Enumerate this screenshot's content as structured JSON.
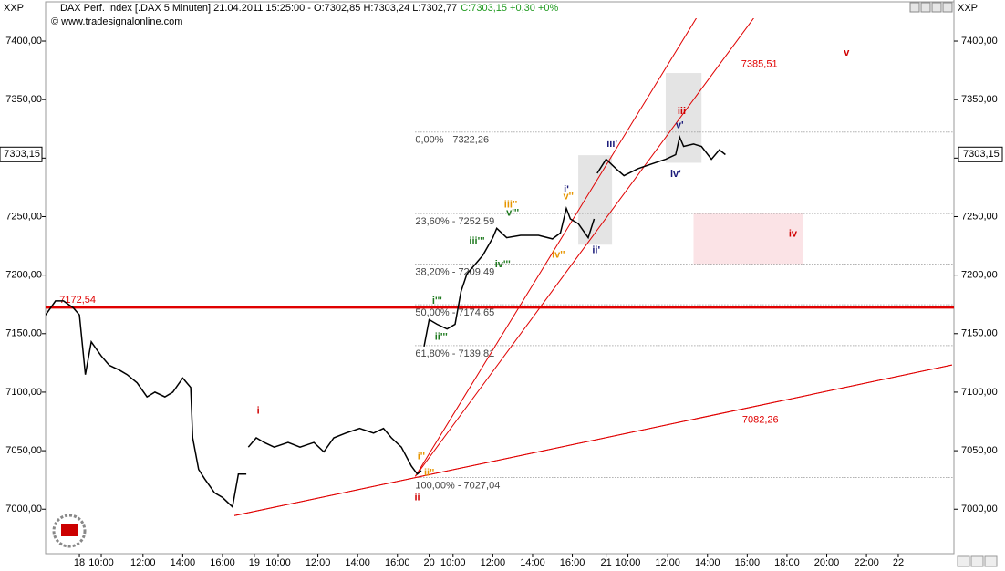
{
  "chart_data": {
    "type": "line",
    "symbol": "XXP",
    "title": "DAX Perf. Index [.DAX 5 Minuten] 21.04.2011 15:25:00 - O:7302,85 H:7303,24 L:7302,77",
    "quote": "C:7303,15 +0,30 +0%",
    "source": "© www.tradesignalonline.com",
    "color": "#000000",
    "x": [
      0,
      0.5,
      0.9,
      1.4,
      1.7,
      2.0,
      2.3,
      2.8,
      3.2,
      3.7,
      4.1,
      4.6,
      5.1,
      5.5,
      6.0,
      6.4,
      6.9,
      7.3,
      7.4,
      7.7,
      8.0,
      8.5,
      8.9,
      9.4,
      9.7,
      10.1,
      10.15,
      10.2,
      10.6,
      11.0,
      11.5,
      12.2,
      12.8,
      13.5,
      14.0,
      14.5,
      15.1,
      15.8,
      16.5,
      17.0,
      17.4,
      17.9,
      18.4,
      18.7,
      18.9,
      19.0,
      19.04,
      19.3,
      19.7,
      20.2,
      20.6,
      20.9,
      21.2,
      21.6,
      22.0,
      22.5,
      22.7,
      23.2,
      23.9,
      24.8,
      25.5,
      25.9,
      26.2,
      26.4,
      26.8,
      27.3,
      27.6,
      27.7,
      27.75,
      28.2,
      28.7,
      29.1,
      29.8,
      30.5,
      31.2,
      31.7,
      31.9,
      32.1,
      32.6,
      33.0,
      33.5,
      33.9,
      34.2
    ],
    "values": [
      7166,
      7178,
      7178,
      7172,
      7166,
      7115,
      7143,
      7131,
      7123,
      7119,
      7115,
      7108,
      7096,
      7100,
      7096,
      7100,
      7112,
      7104,
      7061,
      7034,
      7026,
      7014,
      7010,
      7002,
      7030,
      7030,
      null,
      7053,
      7061,
      7057,
      7053,
      7057,
      7053,
      7057,
      7049,
      7061,
      7065,
      7069,
      7065,
      7069,
      7061,
      7053,
      7037,
      7030,
      7033,
      null,
      7139,
      7162,
      7158,
      7154,
      7158,
      7186,
      7201,
      7209,
      7217,
      7232,
      7240,
      7232,
      7234,
      7234,
      7231,
      7236,
      7257,
      7248,
      7244,
      7232,
      7248,
      null,
      7287,
      7299,
      7291,
      7285,
      7291,
      7295,
      7299,
      7303,
      7318,
      7310,
      7312,
      7310,
      7299,
      7307,
      7303
    ],
    "xlim": [
      0,
      45.7
    ],
    "ylim": [
      6962,
      7419.5
    ],
    "xticks": [
      {
        "value": 1.7,
        "label": "18"
      },
      {
        "value": 2.8,
        "label": "10:00"
      },
      {
        "value": 4.9,
        "label": "12:00"
      },
      {
        "value": 6.9,
        "label": "14:00"
      },
      {
        "value": 8.9,
        "label": "16:00"
      },
      {
        "value": 10.5,
        "label": "19"
      },
      {
        "value": 11.7,
        "label": "10:00"
      },
      {
        "value": 13.7,
        "label": "12:00"
      },
      {
        "value": 15.7,
        "label": "14:00"
      },
      {
        "value": 17.7,
        "label": "16:00"
      },
      {
        "value": 19.3,
        "label": "20"
      },
      {
        "value": 20.5,
        "label": "10:00"
      },
      {
        "value": 22.5,
        "label": "12:00"
      },
      {
        "value": 24.5,
        "label": "14:00"
      },
      {
        "value": 26.5,
        "label": "16:00"
      },
      {
        "value": 28.2,
        "label": "21"
      },
      {
        "value": 29.3,
        "label": "10:00"
      },
      {
        "value": 31.3,
        "label": "12:00"
      },
      {
        "value": 33.3,
        "label": "14:00"
      },
      {
        "value": 35.3,
        "label": "16:00"
      },
      {
        "value": 37.3,
        "label": "18:00"
      },
      {
        "value": 39.3,
        "label": "20:00"
      },
      {
        "value": 41.3,
        "label": "22:00"
      },
      {
        "value": 42.9,
        "label": "22"
      }
    ],
    "yticks": [
      {
        "value": 7000,
        "label": "7000,00"
      },
      {
        "value": 7050,
        "label": "7050,00"
      },
      {
        "value": 7100,
        "label": "7100,00"
      },
      {
        "value": 7150,
        "label": "7150,00"
      },
      {
        "value": 7200,
        "label": "7200,00"
      },
      {
        "value": 7250,
        "label": "7250,00"
      },
      {
        "value": 7300,
        "label": "7300,00"
      },
      {
        "value": 7350,
        "label": "7350,00"
      },
      {
        "value": 7400,
        "label": "7400,00"
      }
    ],
    "last_price": {
      "value": 7303.15,
      "label": "7303,15"
    },
    "hlines": [
      {
        "value": 7172.54,
        "label": "7172,54",
        "color": "#e00000",
        "label_x": 0.7
      }
    ],
    "fib_start_x": 18.6,
    "fib": [
      {
        "value": 7322.26,
        "label": "0,00% - 7322,26"
      },
      {
        "value": 7252.59,
        "label": "23,60% - 7252,59"
      },
      {
        "value": 7209.49,
        "label": "38,20% - 7209,49"
      },
      {
        "value": 7174.65,
        "label": "50,00% - 7174,65"
      },
      {
        "value": 7139.81,
        "label": "61,80% - 7139,81"
      },
      {
        "value": 7027.04,
        "label": "100,00% - 7027,04"
      }
    ],
    "trendlines": [
      {
        "x": [
          9.5,
          45.6
        ],
        "y": [
          6994.5,
          7123.2
        ],
        "color": "#e00000"
      },
      {
        "x": [
          18.6,
          33.3
        ],
        "y": [
          7028,
          7435.1
        ],
        "color": "#e00000"
      },
      {
        "x": [
          18.6,
          36.3
        ],
        "y": [
          7028,
          7435.1
        ],
        "color": "#e00000",
        "label": "7385,51",
        "label_x": 35.0,
        "label_y": 7380
      },
      {
        "x": [
          9.5,
          45.6
        ],
        "y": [
          6994.5,
          7123.2
        ],
        "color": "#e00000",
        "label": "7082,26",
        "label_x": 35.05,
        "label_y": 7076
      }
    ],
    "boxes": [
      {
        "x": [
          26.8,
          28.5
        ],
        "y": [
          7226,
          7302.5
        ],
        "color": "#e4e4e4"
      },
      {
        "x": [
          31.2,
          33.0
        ],
        "y": [
          7296,
          7372.7
        ],
        "color": "#e4e4e4"
      },
      {
        "x": [
          32.6,
          38.1
        ],
        "y": [
          7209.49,
          7252.59
        ],
        "color": "#fbe3e6"
      }
    ],
    "waves": [
      {
        "text": "i",
        "x": 10.7,
        "y": 7084,
        "color": "#d00000"
      },
      {
        "text": "ii",
        "x": 18.7,
        "y": 7010,
        "color": "#d00000"
      },
      {
        "text": "iii",
        "x": 32.0,
        "y": 7340,
        "color": "#d00000"
      },
      {
        "text": "iv",
        "x": 37.6,
        "y": 7235,
        "color": "#d00000"
      },
      {
        "text": "v",
        "x": 40.3,
        "y": 7390,
        "color": "#d00000"
      },
      {
        "text": "i'",
        "x": 26.2,
        "y": 7273,
        "color": "#1a1a7a"
      },
      {
        "text": "ii'",
        "x": 27.7,
        "y": 7221,
        "color": "#1a1a7a"
      },
      {
        "text": "iii'",
        "x": 28.5,
        "y": 7312,
        "color": "#1a1a7a"
      },
      {
        "text": "iv'",
        "x": 31.7,
        "y": 7286,
        "color": "#1a1a7a"
      },
      {
        "text": "v'",
        "x": 31.9,
        "y": 7328,
        "color": "#1a1a7a"
      },
      {
        "text": "i''",
        "x": 18.9,
        "y": 7045,
        "color": "#e69500"
      },
      {
        "text": "ii''",
        "x": 19.3,
        "y": 7031,
        "color": "#e69500"
      },
      {
        "text": "iii''",
        "x": 23.4,
        "y": 7260,
        "color": "#e69500"
      },
      {
        "text": "iv''",
        "x": 25.8,
        "y": 7217,
        "color": "#e69500"
      },
      {
        "text": "v''",
        "x": 26.3,
        "y": 7267,
        "color": "#e69500"
      },
      {
        "text": "i'''",
        "x": 19.7,
        "y": 7178,
        "color": "#1f7a1f"
      },
      {
        "text": "ii'''",
        "x": 19.9,
        "y": 7147,
        "color": "#1f7a1f"
      },
      {
        "text": "iii'''",
        "x": 21.7,
        "y": 7229,
        "color": "#1f7a1f"
      },
      {
        "text": "iv'''",
        "x": 23.0,
        "y": 7209,
        "color": "#1f7a1f"
      },
      {
        "text": "v'''",
        "x": 23.5,
        "y": 7253,
        "color": "#1f7a1f"
      }
    ]
  }
}
